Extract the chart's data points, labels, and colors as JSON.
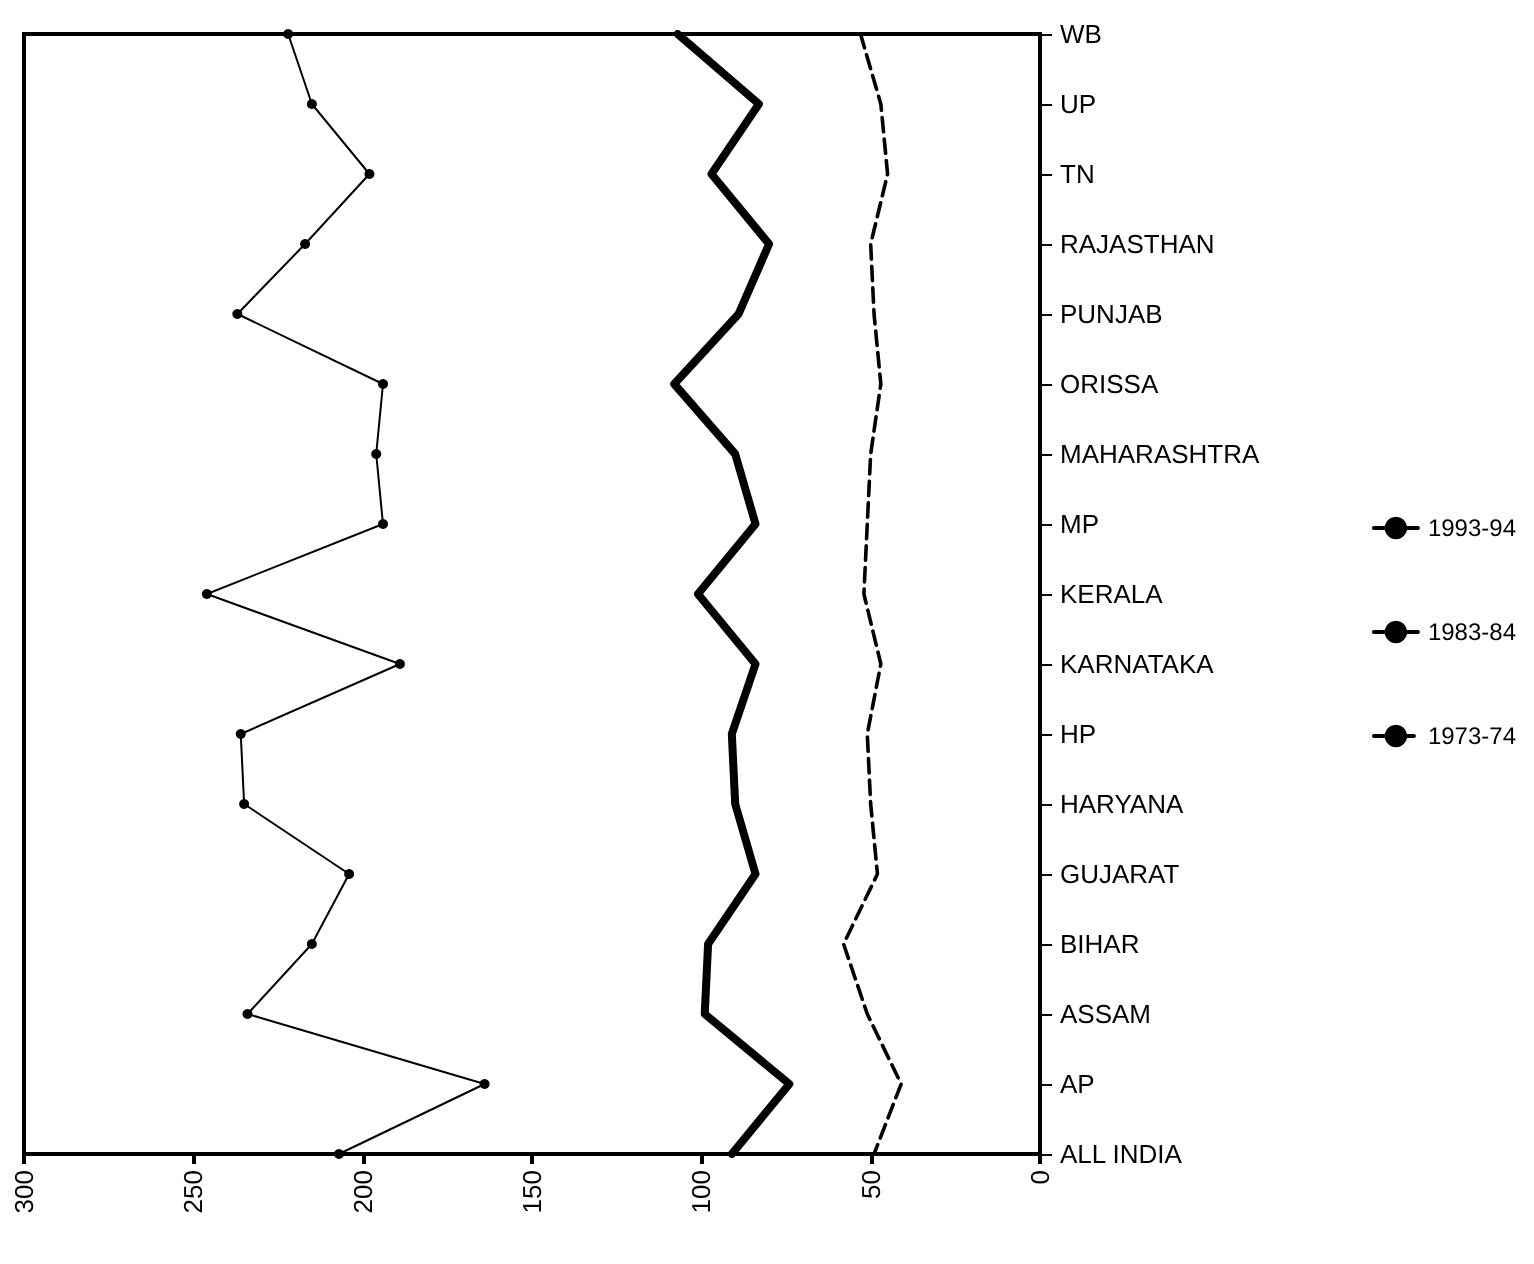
{
  "chart_data": {
    "type": "line",
    "orientation": "horizontal",
    "categories": [
      "WB",
      "UP",
      "TN",
      "RAJASTHAN",
      "PUNJAB",
      "ORISSA",
      "MAHARASHTRA",
      "MP",
      "KERALA",
      "KARNATAKA",
      "HP",
      "HARYANA",
      "GUJARAT",
      "BIHAR",
      "ASSAM",
      "AP",
      "ALL INDIA"
    ],
    "xlim": [
      300,
      0
    ],
    "xticks": [
      300,
      250,
      200,
      150,
      100,
      50,
      0
    ],
    "grid": false,
    "legend": "right",
    "series": [
      {
        "name": "1993-94",
        "color": "#000000",
        "marker": "circle",
        "line_style": "solid",
        "values": [
          222,
          215,
          198,
          217,
          237,
          194,
          196,
          194,
          246,
          189,
          236,
          235,
          204,
          215,
          234,
          164,
          207
        ]
      },
      {
        "name": "1983-84",
        "color": "#000000",
        "marker": "none",
        "line_style": "solid",
        "values": [
          107,
          83,
          97,
          80,
          89,
          108,
          90,
          84,
          101,
          84,
          91,
          90,
          84,
          98,
          99,
          74,
          91
        ]
      },
      {
        "name": "1973-74",
        "color": "#000000",
        "marker": "none",
        "line_style": "dashed",
        "values": [
          53,
          47,
          45,
          50,
          49,
          47,
          50,
          51,
          52,
          47,
          51,
          50,
          48,
          58,
          51,
          41,
          49
        ]
      }
    ]
  }
}
